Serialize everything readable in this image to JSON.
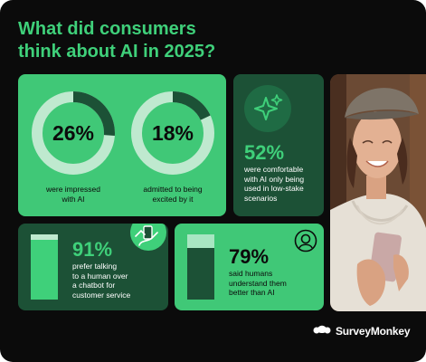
{
  "headline": {
    "line1": "What did consumers",
    "line2": "think about AI in 2025?"
  },
  "stats": {
    "impressed": {
      "value": "26%",
      "fraction": 0.26,
      "caption_l1": "were impressed",
      "caption_l2": "with AI"
    },
    "excited": {
      "value": "18%",
      "fraction": 0.18,
      "caption_l1": "admitted to being",
      "caption_l2": "excited by it"
    },
    "comfortable": {
      "value": "52%",
      "caption": [
        "were comfortable",
        "with AI only being",
        "used in low-stake",
        "scenarios"
      ]
    },
    "prefer_human": {
      "value": "91%",
      "fraction": 0.91,
      "caption": [
        "prefer talking",
        "to a human over",
        "a chatbot for",
        "customer service"
      ]
    },
    "humans_understand": {
      "value": "79%",
      "fraction": 0.79,
      "caption": [
        "said humans",
        "understand them",
        "better than AI"
      ]
    }
  },
  "icons": {
    "sparkle": "sparkle-icon",
    "hand_phone": "hand-phone-icon",
    "person": "person-icon",
    "logo": "surveymonkey-logo-icon"
  },
  "brand": {
    "name": "SurveyMonkey"
  },
  "colors": {
    "background": "#0b0b0b",
    "green": "#40c877",
    "green_bright": "#3fd07a",
    "dark_green": "#1c5136",
    "pale_green": "#bfe9cf"
  }
}
